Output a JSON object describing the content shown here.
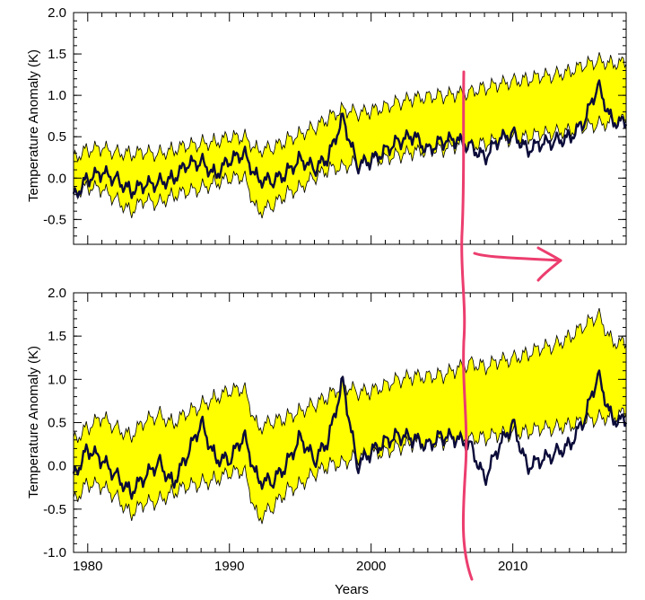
{
  "chart_data": [
    {
      "type": "area",
      "xlabel": "",
      "ylabel": "Temperature Anomaly (K)",
      "xlim": [
        1979,
        2018
      ],
      "ylim": [
        -0.8,
        2.0
      ],
      "yticks": [
        "2.0",
        "1.5",
        "1.0",
        "0.5",
        "0.0",
        "-0.5"
      ],
      "ytick_values": [
        2.0,
        1.5,
        1.0,
        0.5,
        0.0,
        -0.5
      ],
      "xticks": [],
      "xtick_values": [
        1980,
        1990,
        2000,
        2010
      ],
      "band_color": "#ffff00",
      "line_color": "#0b0b3a",
      "x": [
        1979,
        1980,
        1981,
        1982,
        1983,
        1984,
        1985,
        1986,
        1987,
        1988,
        1989,
        1990,
        1991,
        1992,
        1993,
        1994,
        1995,
        1996,
        1997,
        1998,
        1999,
        2000,
        2001,
        2002,
        2003,
        2004,
        2005,
        2006,
        2007,
        2008,
        2009,
        2010,
        2011,
        2012,
        2013,
        2014,
        2015,
        2016,
        2017,
        2018
      ],
      "series": [
        {
          "role": "band-upper",
          "values": [
            0.25,
            0.35,
            0.35,
            0.32,
            0.3,
            0.3,
            0.3,
            0.35,
            0.38,
            0.42,
            0.45,
            0.48,
            0.5,
            0.35,
            0.35,
            0.45,
            0.55,
            0.6,
            0.72,
            0.85,
            0.78,
            0.8,
            0.88,
            0.92,
            0.95,
            1.0,
            1.0,
            1.0,
            1.05,
            1.1,
            1.12,
            1.18,
            1.2,
            1.22,
            1.25,
            1.3,
            1.35,
            1.42,
            1.4,
            1.38
          ]
        },
        {
          "role": "band-lower",
          "values": [
            -0.2,
            -0.1,
            -0.15,
            -0.25,
            -0.4,
            -0.28,
            -0.3,
            -0.2,
            -0.18,
            -0.12,
            -0.05,
            -0.02,
            0.02,
            -0.4,
            -0.35,
            -0.2,
            -0.1,
            0.0,
            0.1,
            0.15,
            0.18,
            0.2,
            0.25,
            0.28,
            0.3,
            0.35,
            0.35,
            0.38,
            0.4,
            0.42,
            0.45,
            0.48,
            0.5,
            0.52,
            0.55,
            0.58,
            0.6,
            0.65,
            0.68,
            0.7
          ]
        },
        {
          "role": "observations",
          "values": [
            -0.22,
            0.0,
            0.05,
            0.0,
            -0.15,
            -0.1,
            -0.05,
            0.0,
            0.15,
            0.2,
            0.05,
            0.2,
            0.3,
            0.0,
            -0.05,
            0.05,
            0.25,
            0.1,
            0.25,
            0.75,
            0.15,
            0.2,
            0.35,
            0.45,
            0.5,
            0.35,
            0.45,
            0.45,
            0.4,
            0.25,
            0.45,
            0.55,
            0.35,
            0.4,
            0.45,
            0.5,
            0.65,
            1.12,
            0.7,
            0.65
          ]
        }
      ]
    },
    {
      "type": "area",
      "xlabel": "Years",
      "ylabel": "Temperature Anomaly (K)",
      "xlim": [
        1979,
        2018
      ],
      "ylim": [
        -1.0,
        2.0
      ],
      "yticks": [
        "2.0",
        "1.5",
        "1.0",
        "0.5",
        "0.0",
        "-0.5",
        "-1.0"
      ],
      "ytick_values": [
        2.0,
        1.5,
        1.0,
        0.5,
        0.0,
        -0.5,
        -1.0
      ],
      "xticks": [
        "1980",
        "1990",
        "2000",
        "2010"
      ],
      "xtick_values": [
        1980,
        1990,
        2000,
        2010
      ],
      "band_color": "#ffff00",
      "line_color": "#0b0b3a",
      "x": [
        1979,
        1980,
        1981,
        1982,
        1983,
        1984,
        1985,
        1986,
        1987,
        1988,
        1989,
        1990,
        1991,
        1992,
        1993,
        1994,
        1995,
        1996,
        1997,
        1998,
        1999,
        2000,
        2001,
        2002,
        2003,
        2004,
        2005,
        2006,
        2007,
        2008,
        2009,
        2010,
        2011,
        2012,
        2013,
        2014,
        2015,
        2016,
        2017,
        2018
      ],
      "series": [
        {
          "role": "band-upper",
          "values": [
            0.3,
            0.45,
            0.55,
            0.45,
            0.35,
            0.5,
            0.6,
            0.5,
            0.6,
            0.7,
            0.8,
            0.85,
            0.9,
            0.45,
            0.5,
            0.55,
            0.65,
            0.7,
            0.8,
            0.95,
            0.85,
            0.85,
            0.95,
            1.0,
            1.02,
            1.05,
            1.05,
            1.1,
            1.2,
            1.15,
            1.2,
            1.25,
            1.3,
            1.35,
            1.4,
            1.5,
            1.6,
            1.75,
            1.45,
            1.4
          ]
        },
        {
          "role": "band-lower",
          "values": [
            -0.4,
            -0.2,
            -0.25,
            -0.35,
            -0.55,
            -0.45,
            -0.4,
            -0.3,
            -0.25,
            -0.2,
            -0.15,
            -0.1,
            -0.05,
            -0.6,
            -0.5,
            -0.3,
            -0.2,
            -0.1,
            0.0,
            0.05,
            0.1,
            0.12,
            0.18,
            0.22,
            0.25,
            0.25,
            0.28,
            0.3,
            0.32,
            0.33,
            0.35,
            0.38,
            0.4,
            0.42,
            0.44,
            0.48,
            0.5,
            0.55,
            0.58,
            0.6
          ]
        },
        {
          "role": "observations",
          "values": [
            -0.12,
            0.2,
            0.05,
            -0.1,
            -0.3,
            -0.15,
            0.05,
            -0.2,
            0.1,
            0.5,
            0.1,
            0.05,
            0.35,
            -0.15,
            -0.2,
            0.0,
            0.35,
            0.05,
            0.3,
            1.0,
            0.0,
            0.15,
            0.3,
            0.35,
            0.3,
            0.25,
            0.35,
            0.3,
            0.25,
            -0.15,
            0.2,
            0.5,
            0.0,
            0.05,
            0.15,
            0.25,
            0.5,
            1.05,
            0.55,
            0.5
          ]
        }
      ]
    }
  ]
}
